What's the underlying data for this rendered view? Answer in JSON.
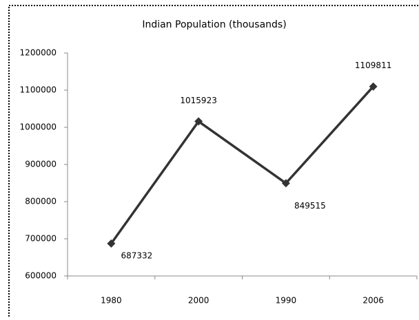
{
  "chart_data": {
    "type": "line",
    "title": "Indian Population (thousands)",
    "categories": [
      "1980",
      "2000",
      "1990",
      "2006"
    ],
    "values": [
      687332,
      1015923,
      849515,
      1109811
    ],
    "color": "#333333",
    "ylim": [
      600000,
      1200000
    ],
    "yticks": [
      600000,
      700000,
      800000,
      900000,
      1000000,
      1100000,
      1200000
    ],
    "grid": false,
    "data_labels": true
  }
}
